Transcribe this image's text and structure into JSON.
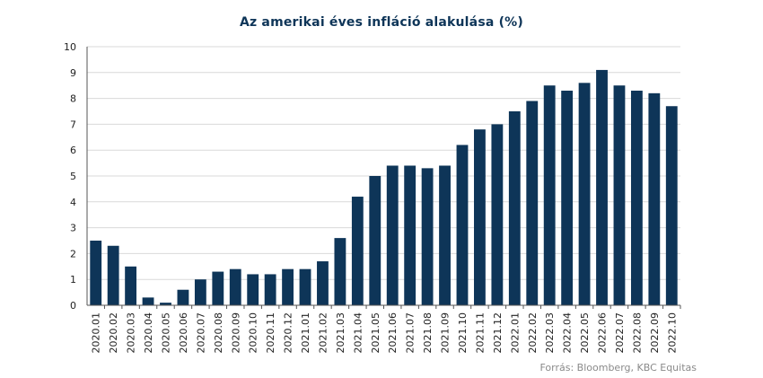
{
  "chart_data": {
    "type": "bar",
    "title": "Az amerikai éves infláció alakulása (%)",
    "xlabel": "",
    "ylabel": "",
    "ylim": [
      0,
      10
    ],
    "yticks": [
      0,
      1,
      2,
      3,
      4,
      5,
      6,
      7,
      8,
      9,
      10
    ],
    "grid": true,
    "legend": "none",
    "bar_color": "#0e3558",
    "categories": [
      "2020.01",
      "2020.02",
      "2020.03",
      "2020.04",
      "2020.05",
      "2020.06",
      "2020.07",
      "2020.08",
      "2020.09",
      "2020.10",
      "2020.11",
      "2020.12",
      "2021.01",
      "2021.02",
      "2021.03",
      "2021.04",
      "2021.05",
      "2021.06",
      "2021.07",
      "2021.08",
      "2021.09",
      "2021.10",
      "2021.11",
      "2021.12",
      "2022.01",
      "2022.02",
      "2022.03",
      "2022.04",
      "2022.05",
      "2022.06",
      "2022.07",
      "2022.08",
      "2022.09",
      "2022.10"
    ],
    "values": [
      2.5,
      2.3,
      1.5,
      0.3,
      0.1,
      0.6,
      1.0,
      1.3,
      1.4,
      1.2,
      1.2,
      1.4,
      1.4,
      1.7,
      2.6,
      4.2,
      5.0,
      5.4,
      5.4,
      5.3,
      5.4,
      6.2,
      6.8,
      7.0,
      7.5,
      7.9,
      8.5,
      8.3,
      8.6,
      9.1,
      8.5,
      8.3,
      8.2,
      7.7
    ]
  },
  "source": "Forrás: Bloomberg,  KBC Equitas"
}
